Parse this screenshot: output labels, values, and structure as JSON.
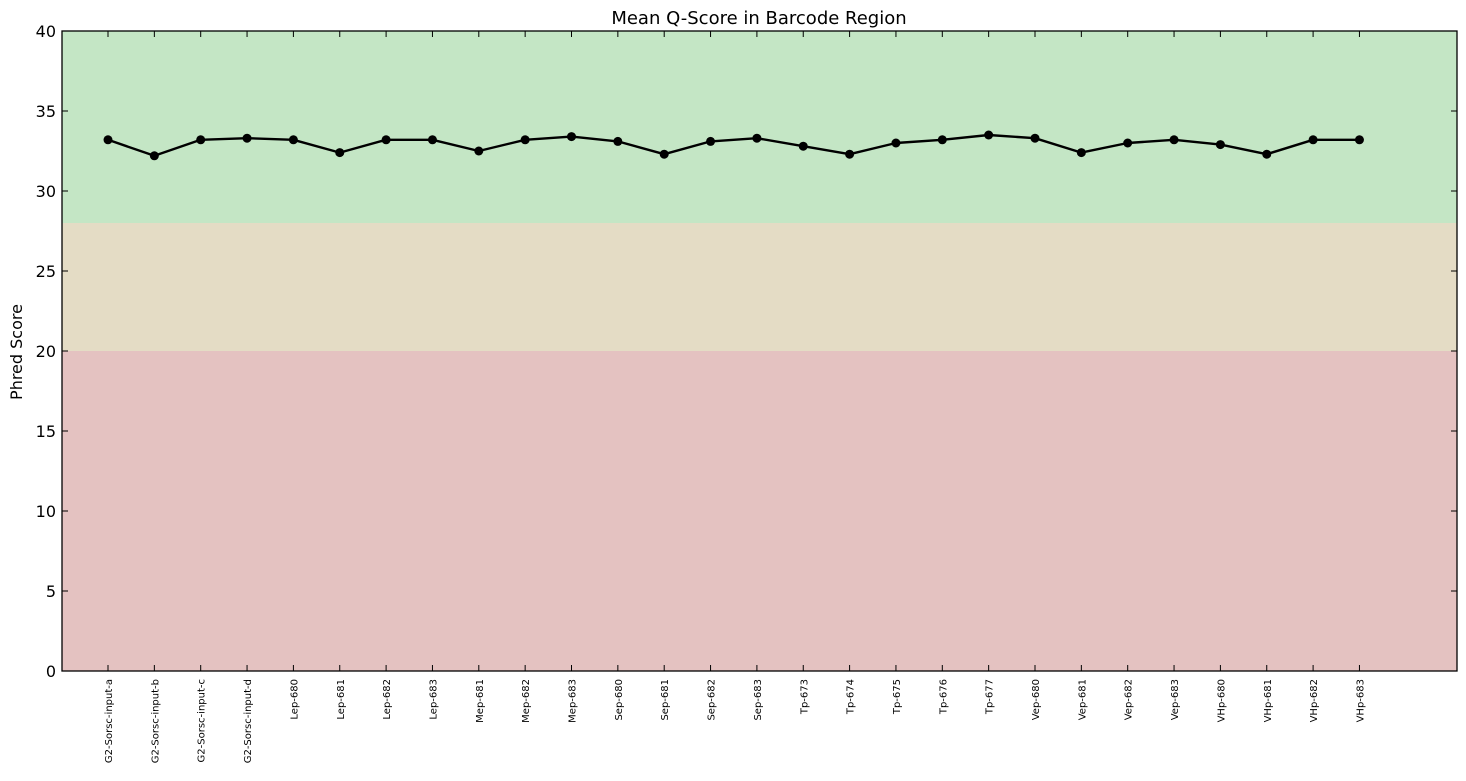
{
  "chart_data": {
    "type": "line",
    "title": "Mean Q-Score in Barcode Region",
    "xlabel": "",
    "ylabel": "Phred Score",
    "ylim": [
      0,
      40
    ],
    "yticks": [
      0,
      5,
      10,
      15,
      20,
      25,
      30,
      35,
      40
    ],
    "grid": false,
    "bands": [
      {
        "from": 0,
        "to": 20,
        "color": "#e4c2c1"
      },
      {
        "from": 20,
        "to": 28,
        "color": "#e4dcc5"
      },
      {
        "from": 28,
        "to": 40,
        "color": "#c4e6c5"
      }
    ],
    "categories": [
      "G2-Sorsc-input-a",
      "G2-Sorsc-input-b",
      "G2-Sorsc-input-c",
      "G2-Sorsc-input-d",
      "Lep-680",
      "Lep-681",
      "Lep-682",
      "Lep-683",
      "Mep-681",
      "Mep-682",
      "Mep-683",
      "Sep-680",
      "Sep-681",
      "Sep-682",
      "Sep-683",
      "Tp-673",
      "Tp-674",
      "Tp-675",
      "Tp-676",
      "Tp-677",
      "Vep-680",
      "Vep-681",
      "Vep-682",
      "Vep-683",
      "VHp-680",
      "VHp-681",
      "VHp-682",
      "VHp-683"
    ],
    "series": [
      {
        "color": "#000000",
        "values": [
          33.2,
          32.2,
          33.2,
          33.3,
          33.2,
          32.4,
          33.2,
          33.2,
          32.5,
          33.2,
          33.4,
          33.1,
          32.3,
          33.1,
          33.3,
          32.8,
          32.3,
          33.0,
          33.2,
          33.5,
          33.3,
          32.4,
          33.0,
          33.2,
          32.9,
          32.3,
          33.2,
          33.2
        ]
      }
    ]
  }
}
